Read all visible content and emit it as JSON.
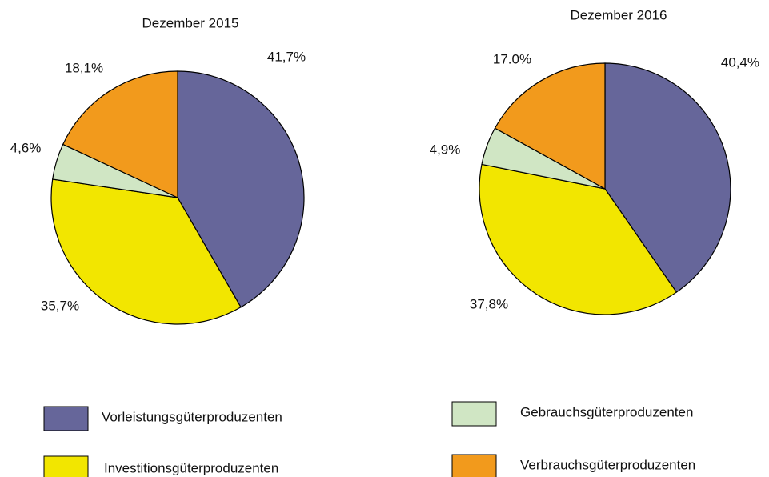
{
  "chart_data": [
    {
      "type": "pie",
      "title": "Dezember 2015",
      "values": [
        41.7,
        35.7,
        4.6,
        18.1
      ],
      "value_labels": [
        "41,7%",
        "35,7%",
        "4,6%",
        "18,1%"
      ]
    },
    {
      "type": "pie",
      "title": "Dezember 2016",
      "values": [
        40.4,
        37.8,
        4.9,
        17.0
      ],
      "value_labels": [
        "40,4%",
        "37,8%",
        "4,9%",
        "17.0%"
      ]
    }
  ],
  "legend": [
    {
      "name": "Vorleistungsgüterproduzenten",
      "color": "#66669a"
    },
    {
      "name": "Investitionsgüterproduzenten",
      "color": "#f2e600"
    },
    {
      "name": "Gebrauchsgüterproduzenten",
      "color": "#d0e6c4"
    },
    {
      "name": "Verbrauchsgüterproduzenten",
      "color": "#f29a1c"
    }
  ]
}
